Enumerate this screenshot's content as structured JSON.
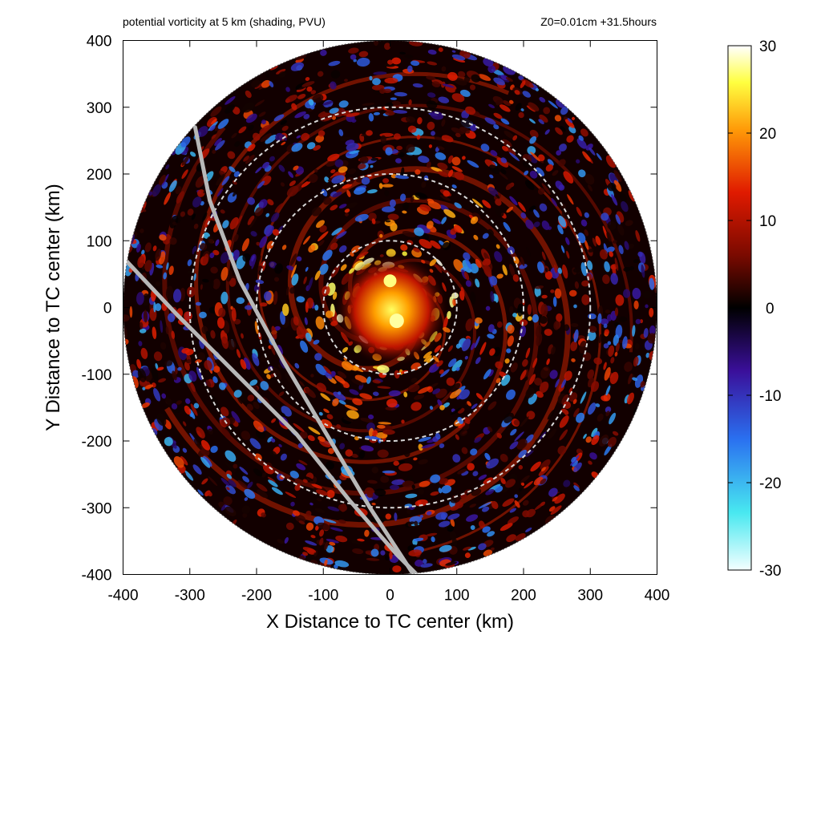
{
  "chart_data": {
    "type": "heatmap",
    "title_left": "potential vorticity at 5 km (shading, PVU)",
    "title_right": "Z0=0.01cm  +31.5hours",
    "xlabel": "X Distance to TC center (km)",
    "ylabel": "Y Distance to TC center (km)",
    "xlim": [
      -400,
      400
    ],
    "ylim": [
      -400,
      400
    ],
    "xticks": [
      "-400",
      "-300",
      "-200",
      "-100",
      "0",
      "100",
      "200",
      "300",
      "400"
    ],
    "yticks": [
      "400",
      "300",
      "200",
      "100",
      "0",
      "-100",
      "-200",
      "-300",
      "-400"
    ],
    "domain_radius_km": 400,
    "range_rings_km": [
      100,
      200,
      300
    ],
    "colorbar": {
      "range": [
        -30,
        30
      ],
      "ticks": [
        "30",
        "20",
        "10",
        "0",
        "-10",
        "-20",
        "-30"
      ],
      "colormap": [
        "#f4ffff",
        "#48e8f0",
        "#2a70f0",
        "#3a0f9a",
        "#000000",
        "#7a0a00",
        "#e01a00",
        "#ff9a08",
        "#ffff40",
        "#ffffff"
      ]
    },
    "tracks": [
      {
        "points": [
          [
            -292,
            270
          ],
          [
            -270,
            160
          ],
          [
            -225,
            40
          ],
          [
            -160,
            -80
          ],
          [
            -95,
            -190
          ],
          [
            -30,
            -300
          ],
          [
            35,
            -400
          ]
        ]
      },
      {
        "points": [
          [
            -400,
            75
          ],
          [
            -320,
            -10
          ],
          [
            -230,
            -100
          ],
          [
            -140,
            -190
          ],
          [
            -60,
            -290
          ],
          [
            10,
            -370
          ],
          [
            40,
            -400
          ]
        ]
      }
    ]
  }
}
